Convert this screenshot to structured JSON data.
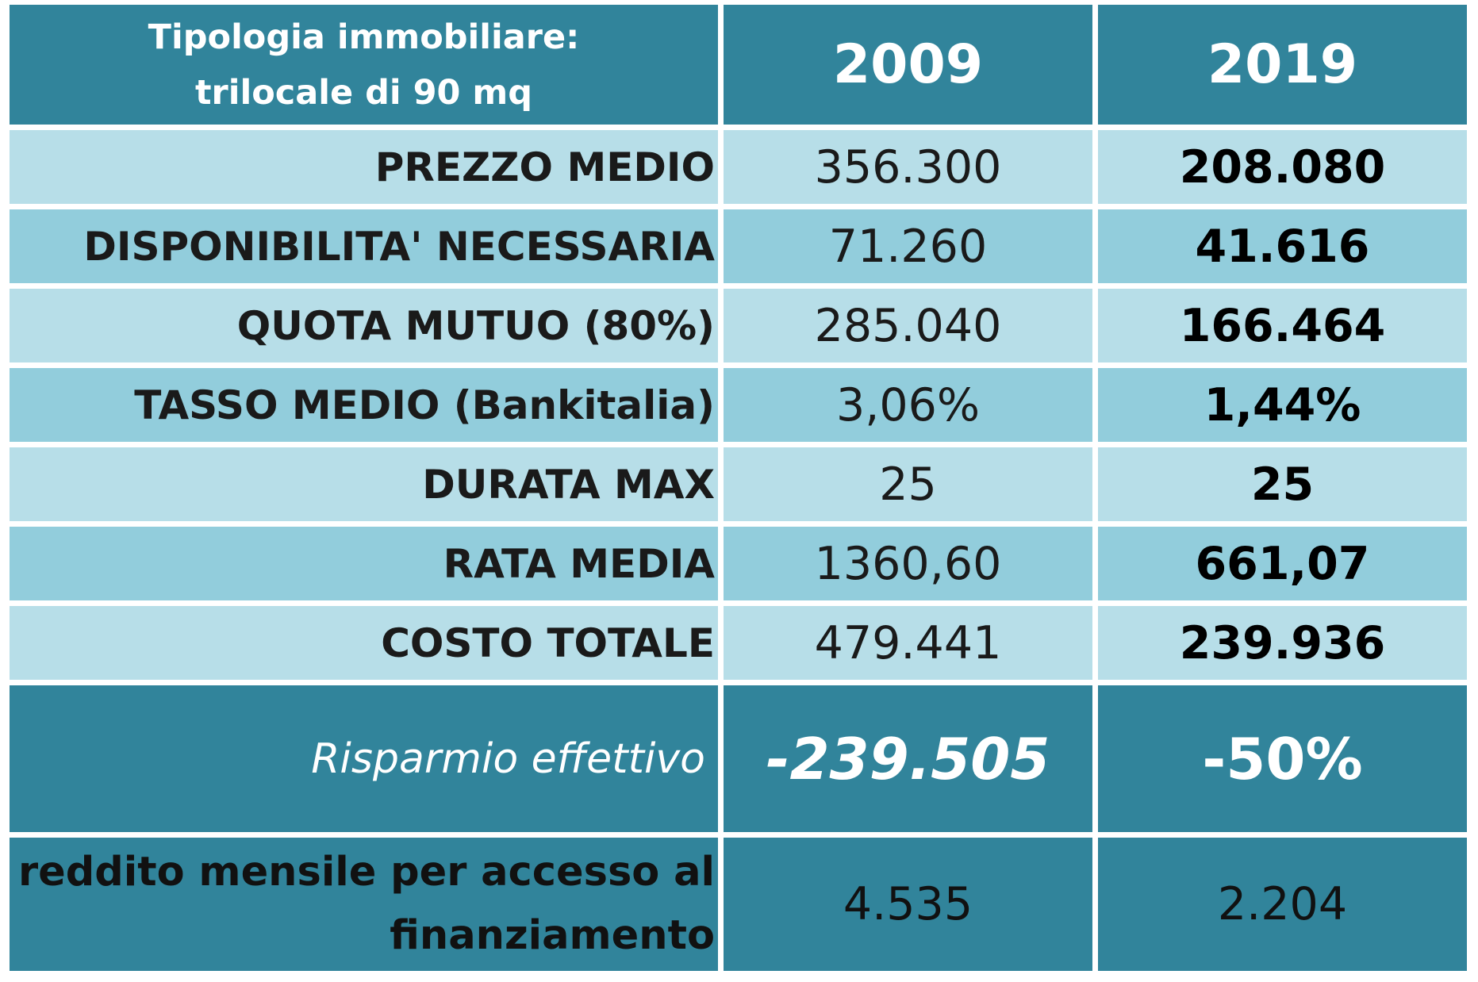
{
  "header": {
    "label_line1": "Tipologia immobiliare:",
    "label_line2": "trilocale di 90 mq",
    "year_1": "2009",
    "year_2": "2019"
  },
  "rows": [
    {
      "label": "PREZZO MEDIO",
      "v2009": "356.300",
      "v2019": "208.080"
    },
    {
      "label": "DISPONIBILITA' NECESSARIA",
      "v2009": "71.260",
      "v2019": "41.616"
    },
    {
      "label": "QUOTA MUTUO (80%)",
      "v2009": "285.040",
      "v2019": "166.464"
    },
    {
      "label": "TASSO MEDIO (Bankitalia)",
      "v2009": "3,06%",
      "v2019": "1,44%"
    },
    {
      "label": "DURATA MAX",
      "v2009": "25",
      "v2019": "25"
    },
    {
      "label": "RATA MEDIA",
      "v2009": "1360,60",
      "v2019": "661,07"
    },
    {
      "label": "COSTO TOTALE",
      "v2009": "479.441",
      "v2019": "239.936"
    }
  ],
  "savings": {
    "label": "Risparmio effettivo",
    "value": "-239.505",
    "percent": "-50%"
  },
  "income": {
    "label_line1": "reddito mensile per accesso al",
    "label_line2": "finanziamento",
    "v2009": "4.535",
    "v2019": "2.204"
  },
  "colors": {
    "header_teal": "#31849b",
    "row_light": "#b7dee8",
    "row_mid": "#92cddc"
  }
}
